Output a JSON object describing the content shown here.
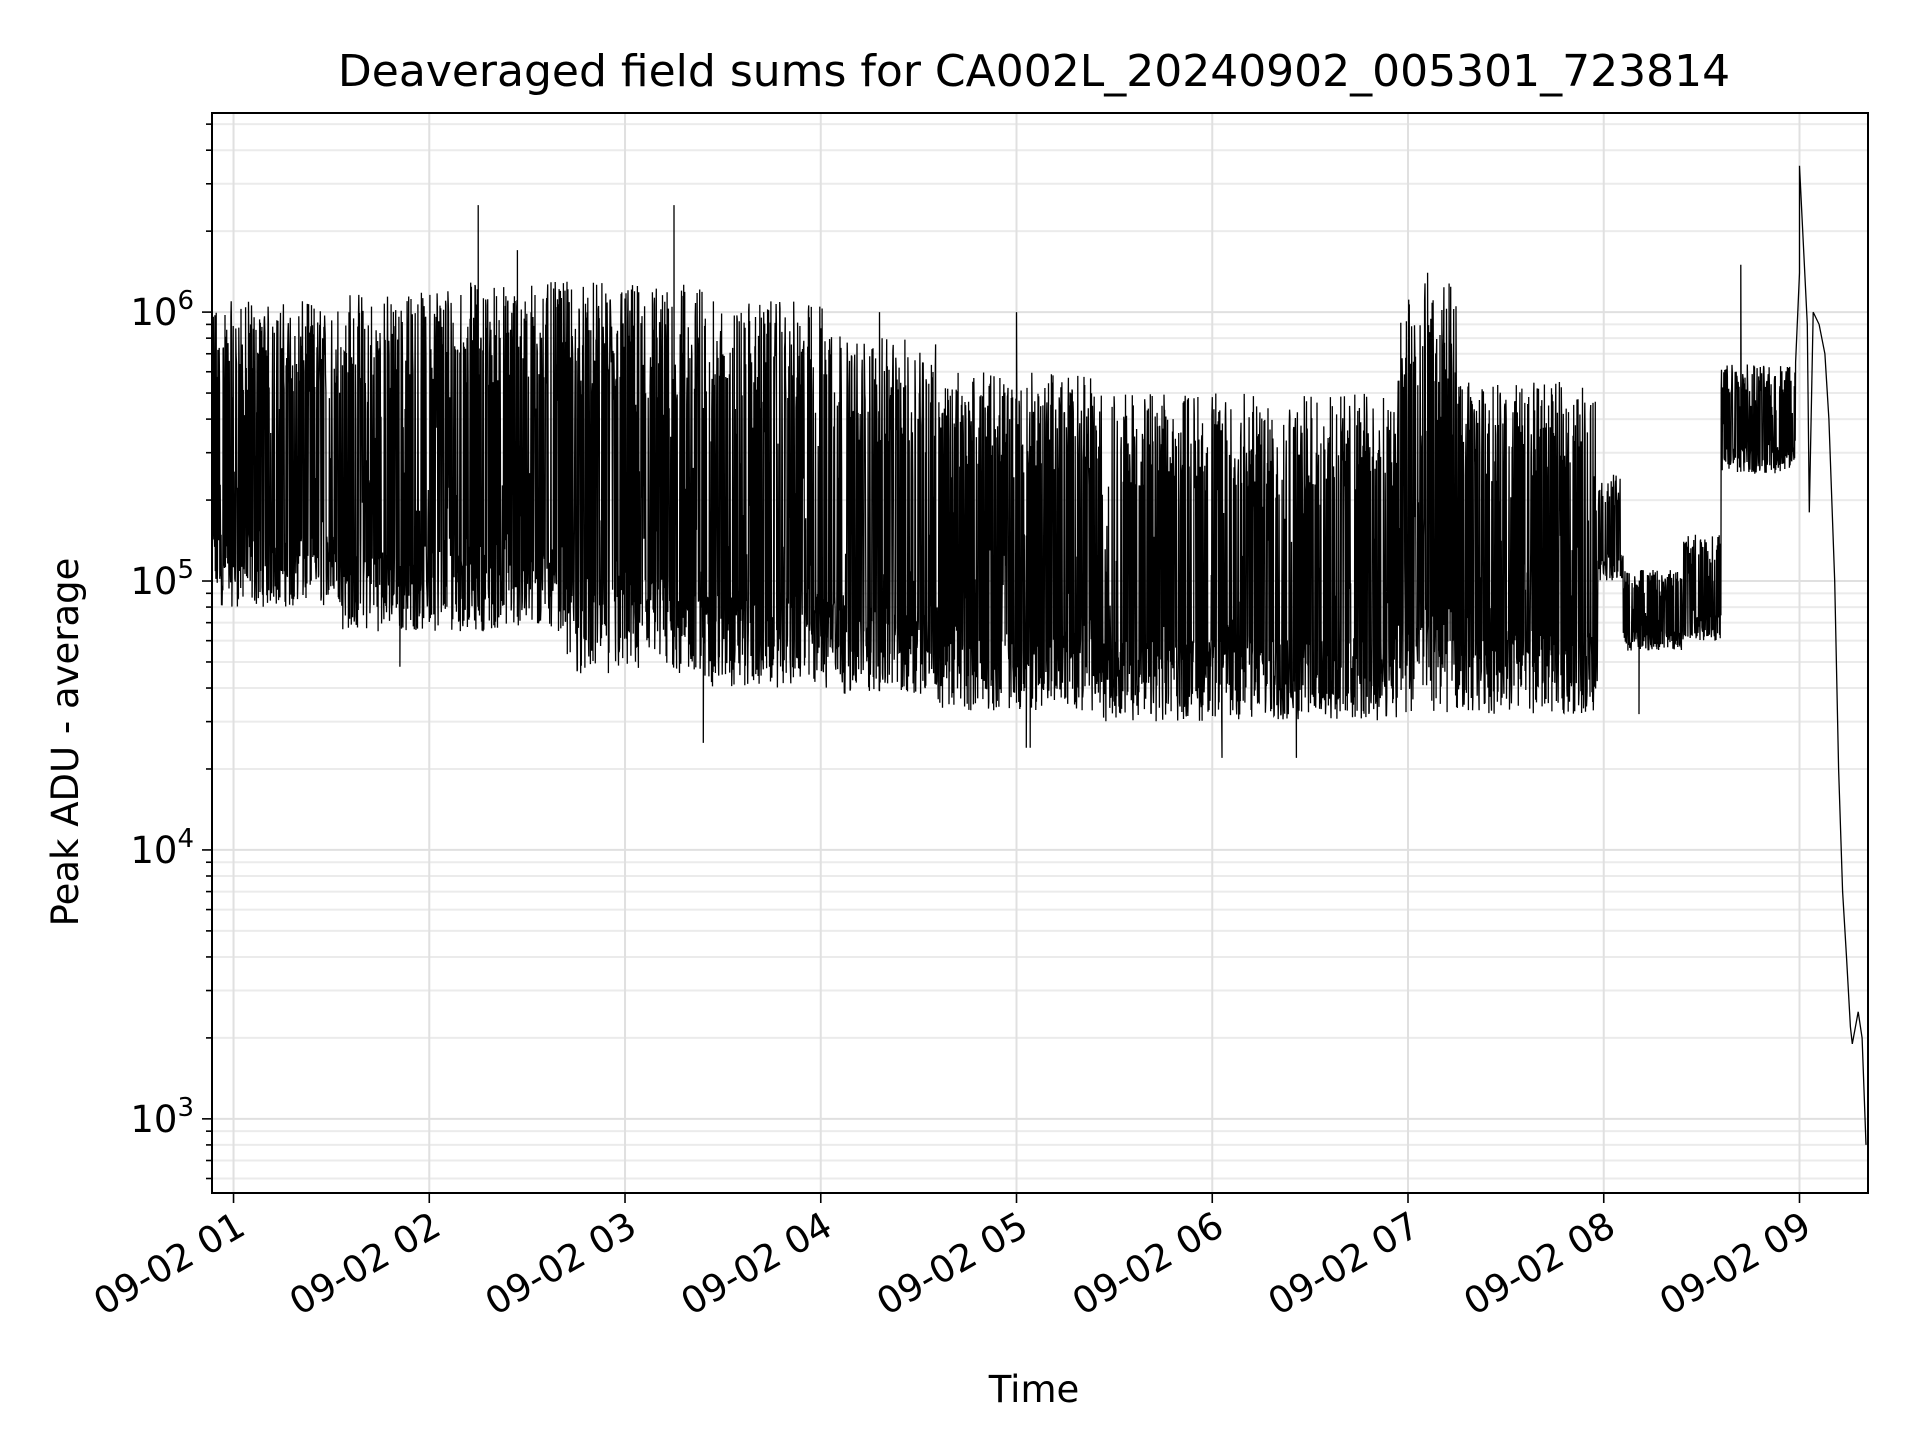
{
  "chart_data": {
    "type": "line",
    "title": "Deaveraged field sums for CA002L_20240902_005301_723814",
    "xlabel": "Time",
    "ylabel": "Peak ADU - average",
    "yscale": "log",
    "ylim": [
      530,
      5500000
    ],
    "xlim": [
      0.89,
      9.35
    ],
    "x_unit": "hours on 09-02",
    "grid": true,
    "line_color": "#000000",
    "x_ticks": [
      {
        "value": 1,
        "label": "09-02 01"
      },
      {
        "value": 2,
        "label": "09-02 02"
      },
      {
        "value": 3,
        "label": "09-02 03"
      },
      {
        "value": 4,
        "label": "09-02 04"
      },
      {
        "value": 5,
        "label": "09-02 05"
      },
      {
        "value": 6,
        "label": "09-02 06"
      },
      {
        "value": 7,
        "label": "09-02 07"
      },
      {
        "value": 8,
        "label": "09-02 08"
      },
      {
        "value": 9,
        "label": "09-02 09"
      }
    ],
    "y_ticks": [
      {
        "value": 1000,
        "base": "10",
        "exp": "3"
      },
      {
        "value": 10000,
        "base": "10",
        "exp": "4"
      },
      {
        "value": 100000,
        "base": "10",
        "exp": "5"
      },
      {
        "value": 1000000,
        "base": "10",
        "exp": "6"
      }
    ],
    "segments": [
      {
        "x0": 0.89,
        "x1": 1.55,
        "lo": 80000,
        "hi": 1100000
      },
      {
        "x0": 1.55,
        "x1": 2.0,
        "lo": 65000,
        "hi": 1200000
      },
      {
        "x0": 2.0,
        "x1": 2.7,
        "lo": 65000,
        "hi": 1300000
      },
      {
        "x0": 2.7,
        "x1": 3.4,
        "lo": 45000,
        "hi": 1300000
      },
      {
        "x0": 3.4,
        "x1": 4.1,
        "lo": 40000,
        "hi": 1100000
      },
      {
        "x0": 4.1,
        "x1": 4.6,
        "lo": 38000,
        "hi": 800000
      },
      {
        "x0": 4.6,
        "x1": 5.4,
        "lo": 33000,
        "hi": 600000
      },
      {
        "x0": 5.4,
        "x1": 6.2,
        "lo": 30000,
        "hi": 500000
      },
      {
        "x0": 6.2,
        "x1": 6.95,
        "lo": 30000,
        "hi": 500000
      },
      {
        "x0": 6.95,
        "x1": 7.25,
        "lo": 32000,
        "hi": 1300000
      },
      {
        "x0": 7.25,
        "x1": 7.97,
        "lo": 32000,
        "hi": 550000
      },
      {
        "x0": 7.97,
        "x1": 8.1,
        "lo": 100000,
        "hi": 250000
      },
      {
        "x0": 8.1,
        "x1": 8.4,
        "lo": 55000,
        "hi": 110000
      },
      {
        "x0": 8.4,
        "x1": 8.6,
        "lo": 60000,
        "hi": 150000
      },
      {
        "x0": 8.6,
        "x1": 8.98,
        "lo": 250000,
        "hi": 650000
      }
    ],
    "tail": [
      [
        8.98,
        650000
      ],
      [
        9.0,
        1400000
      ],
      [
        9.04,
        900000
      ],
      [
        9.07,
        1000000
      ],
      [
        9.1,
        900000
      ],
      [
        9.13,
        700000
      ],
      [
        9.15,
        400000
      ],
      [
        9.18,
        100000
      ],
      [
        9.2,
        20000
      ],
      [
        9.22,
        7000
      ],
      [
        9.24,
        4000
      ],
      [
        9.26,
        2200
      ],
      [
        9.27,
        1900
      ],
      [
        9.3,
        2500
      ],
      [
        9.32,
        2000
      ],
      [
        9.34,
        800
      ]
    ],
    "spikes": [
      [
        2.25,
        2500000
      ],
      [
        2.45,
        1700000
      ],
      [
        3.25,
        2500000
      ],
      [
        4.3,
        1000000
      ],
      [
        5.0,
        1000000
      ],
      [
        7.1,
        1400000
      ],
      [
        8.7,
        1500000
      ],
      [
        9.0,
        3500000
      ]
    ],
    "dips": [
      [
        1.85,
        48000
      ],
      [
        3.4,
        25000
      ],
      [
        5.07,
        24000
      ],
      [
        5.05,
        24000
      ],
      [
        6.05,
        22000
      ],
      [
        6.43,
        22000
      ],
      [
        8.18,
        32000
      ],
      [
        9.05,
        180000
      ]
    ]
  }
}
